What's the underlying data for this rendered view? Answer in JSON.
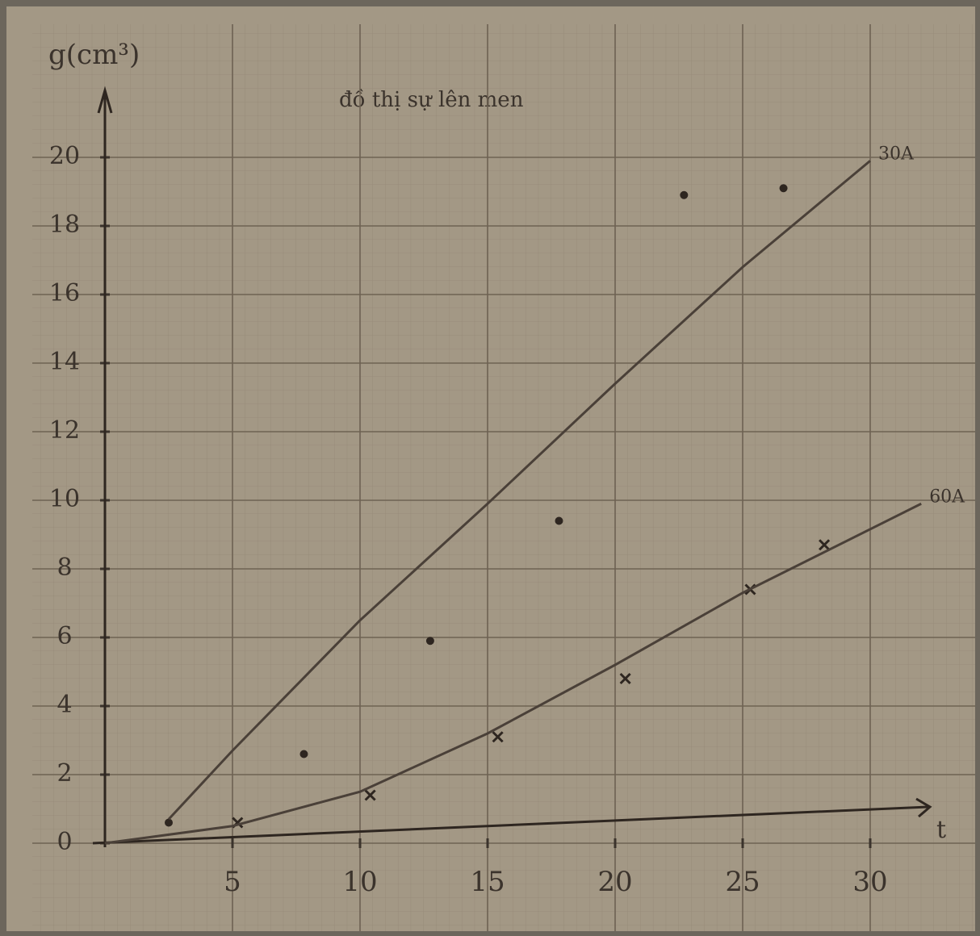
{
  "chart_data": {
    "type": "scatter",
    "title": "đồ thị sự lên men",
    "y_label": "g(cm³)",
    "x_label": "t",
    "xlim": [
      0,
      33
    ],
    "ylim": [
      0,
      22
    ],
    "xticks": [
      5,
      10,
      15,
      20,
      25,
      30
    ],
    "yticks": [
      0,
      2,
      4,
      6,
      8,
      10,
      12,
      14,
      16,
      18,
      20
    ],
    "grid": true,
    "series": [
      {
        "color": "#2e2620",
        "marker": "dot",
        "x": [
          2.5,
          7.8,
          12.75,
          17.8,
          22.7,
          26.6
        ],
        "values": [
          0.6,
          2.6,
          5.9,
          9.4,
          18.9,
          19.1
        ]
      },
      {
        "color": "#2e2620",
        "marker": "x",
        "x": [
          5.2,
          10.4,
          15.4,
          20.4,
          25.3,
          28.2
        ],
        "values": [
          0.6,
          1.4,
          3.1,
          4.8,
          7.4,
          8.7
        ]
      },
      {
        "name": "30A",
        "color": "#4a4038",
        "mode": "line",
        "x": [
          2.5,
          5,
          10,
          15,
          20,
          25,
          30
        ],
        "values": [
          0.7,
          2.7,
          6.5,
          9.9,
          13.4,
          16.8,
          19.9
        ]
      },
      {
        "name": "60A",
        "color": "#4a4038",
        "mode": "line",
        "x": [
          0,
          5,
          10,
          15,
          20,
          25,
          32
        ],
        "values": [
          0,
          0.5,
          1.5,
          3.2,
          5.2,
          7.3,
          9.9
        ]
      }
    ]
  }
}
